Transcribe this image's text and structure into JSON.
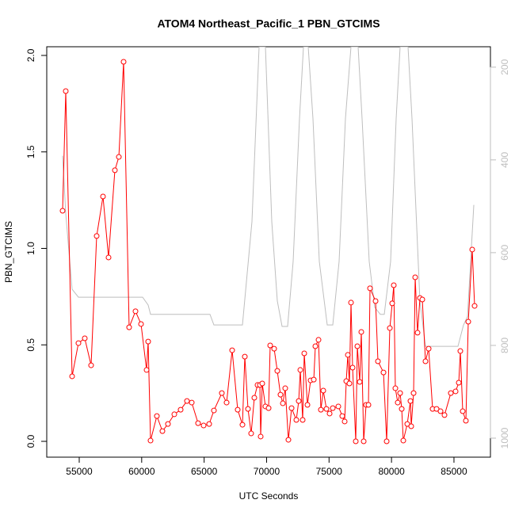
{
  "chart_data": {
    "type": "line",
    "title": "ATOM4 Northeast_Pacific_1 PBN_GTCIMS",
    "x_label": "UTC Seconds",
    "y_label": "PBN_GTCIMS",
    "xlim": [
      52400,
      87920
    ],
    "ylim": [
      -0.082,
      2.045
    ],
    "y2lim": [
      1041,
      156
    ],
    "xticks": [
      55000,
      60000,
      65000,
      70000,
      75000,
      80000,
      85000
    ],
    "yticks": [
      {
        "value": 0,
        "label": "0.0"
      },
      0.5,
      {
        "value": 1,
        "label": "1.0"
      },
      1.5,
      {
        "value": 2,
        "label": "2.0"
      }
    ],
    "y2ticks": [
      200,
      400,
      600,
      800,
      1000
    ],
    "y2_color": "#bebebe",
    "series": [
      {
        "color": "#ff0000",
        "marker": "circle",
        "x": [
          53668,
          53922,
          54430,
          54937,
          55444,
          55951,
          56396,
          56903,
          57347,
          57855,
          58172,
          58552,
          58996,
          59504,
          59948,
          60392,
          60518,
          60709,
          61216,
          61660,
          62104,
          62612,
          63119,
          63627,
          64007,
          64515,
          64959,
          65403,
          65783,
          66417,
          66798,
          67242,
          67686,
          68067,
          68257,
          68511,
          68764,
          69018,
          69272,
          69462,
          69526,
          69653,
          69907,
          70160,
          70287,
          70604,
          70858,
          71112,
          71302,
          71492,
          71746,
          72000,
          72380,
          72571,
          72698,
          72888,
          73015,
          73269,
          73523,
          73777,
          73903,
          74157,
          74347,
          74538,
          74791,
          75045,
          75299,
          75743,
          76060,
          76250,
          76377,
          76504,
          76631,
          76758,
          76885,
          77138,
          77265,
          77455,
          77582,
          77773,
          77963,
          78153,
          78280,
          78724,
          78914,
          79358,
          79612,
          79866,
          80055,
          80182,
          80309,
          80499,
          80690,
          80817,
          80944,
          81261,
          81515,
          81578,
          81768,
          81895,
          82085,
          82276,
          82466,
          82719,
          82973,
          83290,
          83608,
          83925,
          84242,
          84749,
          85130,
          85384,
          85510,
          85701,
          85954,
          86145,
          86462,
          86652
        ],
        "values": [
          1.195,
          1.815,
          0.337,
          0.509,
          0.534,
          0.394,
          1.064,
          1.269,
          0.953,
          1.405,
          1.474,
          1.967,
          0.591,
          0.674,
          0.608,
          0.37,
          0.517,
          0.004,
          0.131,
          0.053,
          0.09,
          0.14,
          0.164,
          0.209,
          0.201,
          0.094,
          0.082,
          0.09,
          0.16,
          0.25,
          0.201,
          0.472,
          0.164,
          0.086,
          0.439,
          0.168,
          0.041,
          0.226,
          0.292,
          0.292,
          0.025,
          0.3,
          0.181,
          0.172,
          0.497,
          0.48,
          0.365,
          0.242,
          0.197,
          0.275,
          0.008,
          0.172,
          0.111,
          0.209,
          0.37,
          0.111,
          0.456,
          0.189,
          0.316,
          0.32,
          0.493,
          0.526,
          0.164,
          0.263,
          0.168,
          0.144,
          0.172,
          0.181,
          0.131,
          0.103,
          0.312,
          0.448,
          0.3,
          0.719,
          0.382,
          0.0,
          0.493,
          0.308,
          0.567,
          0.0,
          0.189,
          0.189,
          0.793,
          0.727,
          0.415,
          0.357,
          0.0,
          0.587,
          0.715,
          0.809,
          0.275,
          0.201,
          0.25,
          0.168,
          0.004,
          0.09,
          0.209,
          0.078,
          0.25,
          0.85,
          0.563,
          0.743,
          0.735,
          0.415,
          0.48,
          0.168,
          0.168,
          0.156,
          0.136,
          0.25,
          0.259,
          0.304,
          0.468,
          0.156,
          0.107,
          0.62,
          0.994,
          0.702
        ]
      },
      {
        "color": "#bebebe",
        "axis": "y2",
        "x": [
          53668,
          53922,
          54430,
          54937,
          55444,
          60074,
          60518,
          60709,
          65466,
          65783,
          68067,
          68828,
          69399,
          69907,
          70414,
          70858,
          71239,
          71683,
          72126,
          72634,
          72951,
          73332,
          73712,
          74220,
          74854,
          75298,
          75805,
          76312,
          76756,
          77327,
          77644,
          78215,
          78659,
          79103,
          79421,
          79928,
          80372,
          80689,
          81323,
          81641,
          82275,
          82719,
          85320,
          85764,
          86082,
          86589
        ],
        "values": [
          391,
          516,
          679,
          696,
          696,
          696,
          713,
          733,
          733,
          756,
          756,
          533,
          156,
          156,
          533,
          704,
          759,
          759,
          619,
          311,
          156,
          156,
          311,
          619,
          756,
          756,
          619,
          311,
          156,
          156,
          311,
          619,
          718,
          733,
          733,
          619,
          311,
          156,
          156,
          311,
          704,
          802,
          802,
          756,
          738,
          497
        ]
      }
    ]
  }
}
